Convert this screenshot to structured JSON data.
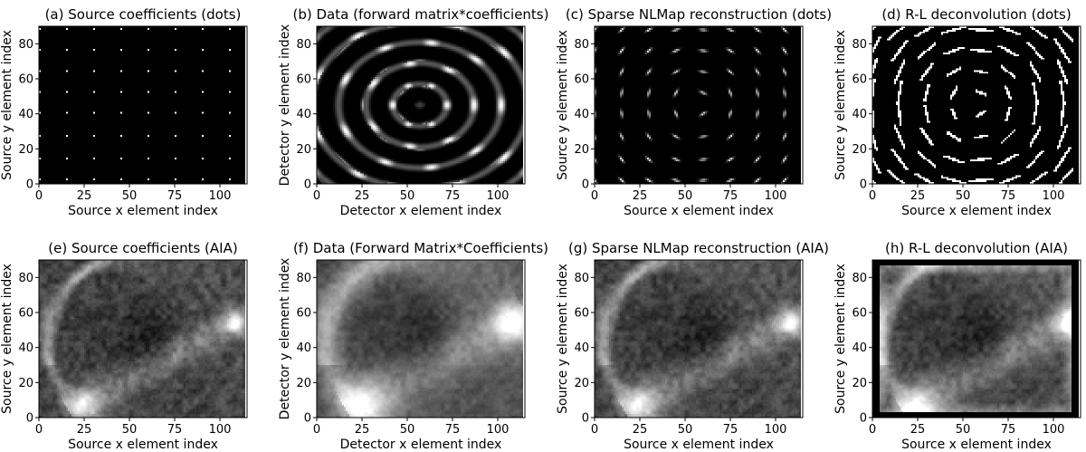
{
  "chart_data": [
    {
      "type": "heatmap",
      "title": "(a) Source coefficients (dots)",
      "xlabel": "Source x element index",
      "ylabel": "Source y element index",
      "xlim": [
        0,
        115
      ],
      "ylim": [
        0,
        90
      ],
      "xticks": [
        0,
        25,
        50,
        75,
        100
      ],
      "yticks": [
        0,
        20,
        40,
        60,
        80
      ],
      "colormap": "gray",
      "content": "dots",
      "dot_grid": {
        "x": [
          0,
          15,
          30,
          45,
          60,
          75,
          90,
          105
        ],
        "y": [
          2,
          14,
          27,
          40,
          52,
          64,
          76,
          88
        ]
      }
    },
    {
      "type": "heatmap",
      "title": "(b) Data (forward matrix*coefficients)",
      "xlabel": "Detector x element index",
      "ylabel": "Detector y element index",
      "xlim": [
        0,
        115
      ],
      "ylim": [
        0,
        90
      ],
      "xticks": [
        0,
        25,
        50,
        75,
        100
      ],
      "yticks": [
        0,
        20,
        40,
        60,
        80
      ],
      "colormap": "gray",
      "content": "forward"
    },
    {
      "type": "heatmap",
      "title": "(c) Sparse NLMap reconstruction (dots)",
      "xlabel": "Source x element index",
      "ylabel": "Source y element index",
      "xlim": [
        0,
        115
      ],
      "ylim": [
        0,
        90
      ],
      "xticks": [
        0,
        25,
        50,
        75,
        100
      ],
      "yticks": [
        0,
        20,
        40,
        60,
        80
      ],
      "colormap": "gray",
      "content": "recon"
    },
    {
      "type": "heatmap",
      "title": "(d) R-L deconvolution (dots)",
      "xlabel": "Source x element index",
      "ylabel": "Source y element index",
      "xlim": [
        0,
        115
      ],
      "ylim": [
        0,
        90
      ],
      "xticks": [
        0,
        25,
        50,
        75,
        100
      ],
      "yticks": [
        0,
        20,
        40,
        60,
        80
      ],
      "colormap": "gray",
      "content": "rl_dots"
    },
    {
      "type": "heatmap",
      "title": "(e) Source coefficients (AIA)",
      "xlabel": "Source x element index",
      "ylabel": "Source y element index",
      "xlim": [
        0,
        115
      ],
      "ylim": [
        0,
        90
      ],
      "xticks": [
        0,
        25,
        50,
        75,
        100
      ],
      "yticks": [
        0,
        20,
        40,
        60,
        80
      ],
      "colormap": "gray",
      "content": "aia_sharp"
    },
    {
      "type": "heatmap",
      "title": "(f) Data (Forward Matrix*Coefficients)",
      "xlabel": "Detector x element index",
      "ylabel": "Detector y element index",
      "xlim": [
        0,
        115
      ],
      "ylim": [
        0,
        90
      ],
      "xticks": [
        0,
        25,
        50,
        75,
        100
      ],
      "yticks": [
        0,
        20,
        40,
        60,
        80
      ],
      "colormap": "gray",
      "content": "aia_blur"
    },
    {
      "type": "heatmap",
      "title": "(g) Sparse NLMap reconstruction (AIA)",
      "xlabel": "Source x element index",
      "ylabel": "Source y element index",
      "xlim": [
        0,
        115
      ],
      "ylim": [
        0,
        90
      ],
      "xticks": [
        0,
        25,
        50,
        75,
        100
      ],
      "yticks": [
        0,
        20,
        40,
        60,
        80
      ],
      "colormap": "gray",
      "content": "aia_recon"
    },
    {
      "type": "heatmap",
      "title": "(h) R-L deconvolution (AIA)",
      "xlabel": "Source x element index",
      "ylabel": "Source y element index",
      "xlim": [
        0,
        115
      ],
      "ylim": [
        0,
        90
      ],
      "xticks": [
        0,
        25,
        50,
        75,
        100
      ],
      "yticks": [
        0,
        20,
        40,
        60,
        80
      ],
      "colormap": "gray",
      "content": "aia_rl"
    }
  ]
}
